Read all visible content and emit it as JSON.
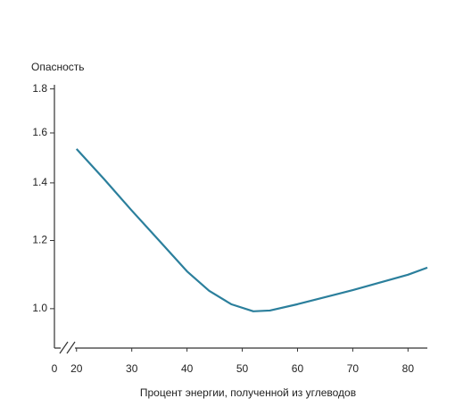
{
  "chart_data": {
    "type": "line",
    "y_label": "Опасность",
    "x_label": "Процент энергии, полученной из углеводов",
    "axis_break_label": "0",
    "x": [
      20,
      25,
      30,
      35,
      40,
      44,
      48,
      52,
      55,
      60,
      70,
      80,
      83.5
    ],
    "series": [
      {
        "name": "Опасность",
        "color": "#2b7f9c",
        "values": [
          1.533,
          1.414,
          1.3,
          1.199,
          1.105,
          1.049,
          1.012,
          0.993,
          0.995,
          1.012,
          1.051,
          1.095,
          1.116
        ]
      }
    ],
    "xlim": [
      16,
      83.5
    ],
    "xticks": [
      20,
      30,
      40,
      50,
      60,
      70,
      80
    ],
    "ylim": [
      0.9,
      1.82
    ],
    "yticks": [
      {
        "value": 1.0,
        "label": "1.0"
      },
      {
        "value": 1.2,
        "label": "1.2"
      },
      {
        "value": 1.4,
        "label": "1.4"
      },
      {
        "value": 1.6,
        "label": "1.6"
      },
      {
        "value": 1.8,
        "label": "1.8"
      }
    ],
    "y_scale": "log",
    "grid": false
  }
}
